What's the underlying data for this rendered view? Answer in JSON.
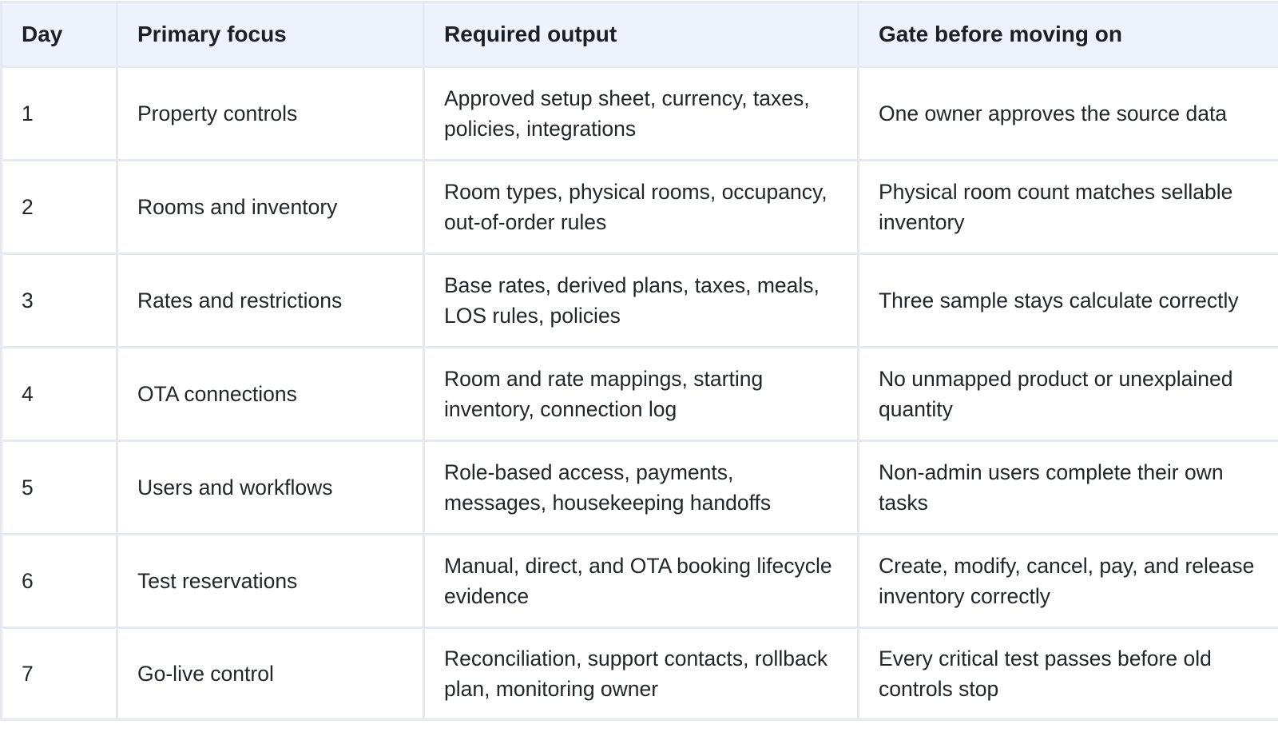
{
  "table": {
    "headers": [
      "Day",
      "Primary focus",
      "Required output",
      "Gate before moving on"
    ],
    "rows": [
      {
        "day": "1",
        "focus": "Property controls",
        "output": "Approved setup sheet, currency, taxes, policies, integrations",
        "gate": "One owner approves the source data"
      },
      {
        "day": "2",
        "focus": "Rooms and inventory",
        "output": "Room types, physical rooms, occupancy, out-of-order rules",
        "gate": "Physical room count matches sellable inventory"
      },
      {
        "day": "3",
        "focus": "Rates and restrictions",
        "output": "Base rates, derived plans, taxes, meals, LOS rules, policies",
        "gate": "Three sample stays calculate correctly"
      },
      {
        "day": "4",
        "focus": "OTA connections",
        "output": "Room and rate mappings, starting inventory, connection log",
        "gate": "No unmapped product or unexplained quantity"
      },
      {
        "day": "5",
        "focus": "Users and workflows",
        "output": "Role-based access, payments, messages, housekeeping handoffs",
        "gate": "Non-admin users complete their own tasks"
      },
      {
        "day": "6",
        "focus": "Test reservations",
        "output": "Manual, direct, and OTA booking lifecycle evidence",
        "gate": "Create, modify, cancel, pay, and release inventory correctly"
      },
      {
        "day": "7",
        "focus": "Go-live control",
        "output": "Reconciliation, support contacts, rollback plan, monitoring owner",
        "gate": "Every critical test passes before old controls stop"
      }
    ]
  }
}
